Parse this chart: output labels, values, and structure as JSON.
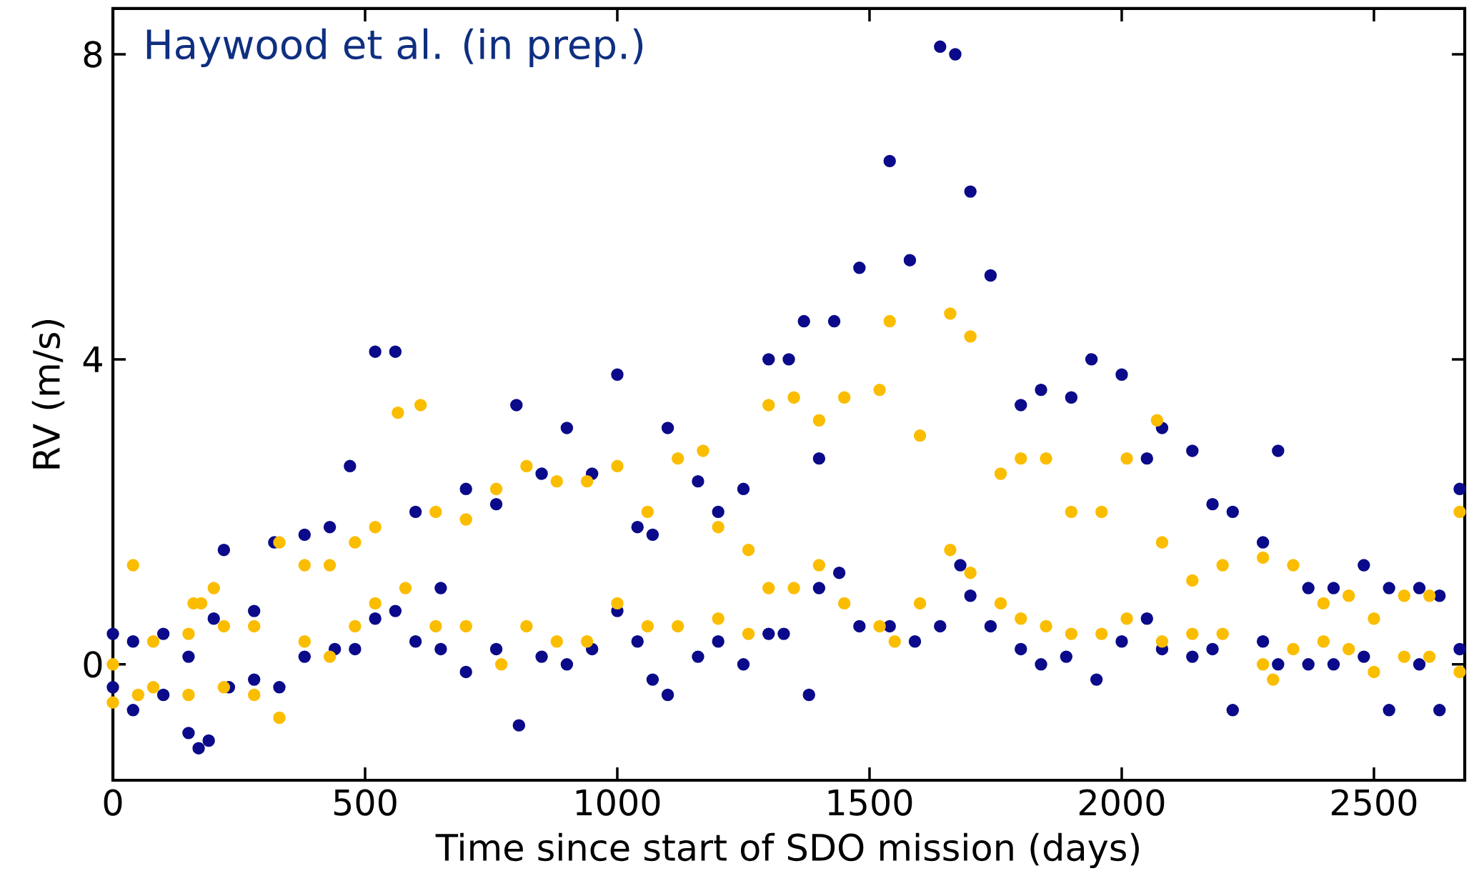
{
  "chart_data": {
    "type": "scatter",
    "xlabel": "Time since start of SDO mission (days)",
    "ylabel": "RV (m/s)",
    "annotations": [
      "Haywood et al. (in prep.)"
    ],
    "marker": "circle",
    "xlim": [
      0,
      2680
    ],
    "ylim": [
      -1.52,
      8.6
    ],
    "xticks": [
      0,
      500,
      1000,
      1500,
      2000,
      2500
    ],
    "yticks": [
      0,
      4,
      8
    ],
    "series": [
      {
        "color": "#0a0a8a",
        "x": [
          0,
          0,
          40,
          40,
          100,
          100,
          150,
          150,
          170,
          200,
          190,
          220,
          230,
          280,
          280,
          320,
          330,
          380,
          380,
          430,
          440,
          470,
          480,
          520,
          520,
          560,
          560,
          600,
          600,
          650,
          650,
          700,
          700,
          760,
          760,
          800,
          805,
          850,
          850,
          900,
          900,
          950,
          950,
          1000,
          1000,
          1040,
          1040,
          1070,
          1070,
          1100,
          1100,
          1160,
          1160,
          1200,
          1200,
          1250,
          1250,
          1300,
          1300,
          1340,
          1330,
          1370,
          1380,
          1400,
          1400,
          1430,
          1440,
          1480,
          1480,
          1540,
          1540,
          1580,
          1590,
          1640,
          1640,
          1670,
          1680,
          1700,
          1700,
          1740,
          1740,
          1800,
          1800,
          1840,
          1840,
          1900,
          1890,
          1940,
          1950,
          2000,
          2000,
          2050,
          2050,
          2080,
          2080,
          2140,
          2140,
          2180,
          2180,
          2220,
          2220,
          2280,
          2280,
          2310,
          2310,
          2370,
          2370,
          2420,
          2420,
          2480,
          2480,
          2530,
          2530,
          2590,
          2590,
          2630,
          2630,
          2670,
          2670
        ],
        "values": [
          0.4,
          -0.3,
          0.3,
          -0.6,
          0.4,
          -0.4,
          0.1,
          -0.9,
          -1.1,
          0.6,
          -1.0,
          1.5,
          -0.3,
          0.7,
          -0.2,
          1.6,
          -0.3,
          1.7,
          0.1,
          1.8,
          0.2,
          2.6,
          0.2,
          4.1,
          0.6,
          4.1,
          0.7,
          2.0,
          0.3,
          1.0,
          0.2,
          2.3,
          -0.1,
          2.1,
          0.2,
          3.4,
          -0.8,
          2.5,
          0.1,
          3.1,
          0.0,
          2.5,
          0.2,
          3.8,
          0.7,
          1.8,
          0.3,
          1.7,
          -0.2,
          3.1,
          -0.4,
          2.4,
          0.1,
          2.0,
          0.3,
          2.3,
          0.0,
          4.0,
          0.4,
          4.0,
          0.4,
          4.5,
          -0.4,
          2.7,
          1.0,
          4.5,
          1.2,
          5.2,
          0.5,
          6.6,
          0.5,
          5.3,
          0.3,
          8.1,
          0.5,
          8.0,
          1.3,
          6.2,
          0.9,
          5.1,
          0.5,
          3.4,
          0.2,
          3.6,
          0.0,
          3.5,
          0.1,
          4.0,
          -0.2,
          3.8,
          0.3,
          2.7,
          0.6,
          3.1,
          0.2,
          2.8,
          0.1,
          2.1,
          0.2,
          2.0,
          -0.6,
          1.6,
          0.3,
          2.8,
          0.0,
          1.0,
          0.0,
          1.0,
          0.0,
          1.3,
          0.1,
          1.0,
          -0.6,
          1.0,
          0.0,
          0.9,
          -0.6,
          2.3,
          0.2
        ]
      },
      {
        "color": "#fbbd00",
        "x": [
          0,
          0,
          40,
          50,
          80,
          80,
          150,
          150,
          160,
          175,
          200,
          220,
          220,
          280,
          280,
          330,
          330,
          380,
          380,
          430,
          430,
          480,
          480,
          520,
          520,
          565,
          580,
          610,
          640,
          640,
          700,
          700,
          760,
          770,
          820,
          820,
          880,
          880,
          940,
          940,
          1000,
          1000,
          1060,
          1060,
          1120,
          1120,
          1170,
          1200,
          1200,
          1260,
          1260,
          1300,
          1300,
          1350,
          1350,
          1400,
          1400,
          1450,
          1450,
          1520,
          1520,
          1540,
          1550,
          1600,
          1600,
          1660,
          1660,
          1700,
          1700,
          1760,
          1760,
          1800,
          1800,
          1850,
          1850,
          1900,
          1900,
          1960,
          1960,
          2010,
          2010,
          2070,
          2080,
          2080,
          2140,
          2140,
          2200,
          2200,
          2280,
          2280,
          2300,
          2340,
          2340,
          2400,
          2400,
          2450,
          2450,
          2500,
          2500,
          2560,
          2560,
          2610,
          2610,
          2670,
          2670
        ],
        "values": [
          0.0,
          -0.5,
          1.3,
          -0.4,
          0.3,
          -0.3,
          0.4,
          -0.4,
          0.8,
          0.8,
          1.0,
          0.5,
          -0.3,
          0.5,
          -0.4,
          -0.7,
          1.6,
          1.3,
          0.3,
          1.3,
          0.1,
          1.6,
          0.5,
          1.8,
          0.8,
          3.3,
          1.0,
          3.4,
          2.0,
          0.5,
          1.9,
          0.5,
          2.3,
          0.0,
          2.6,
          0.5,
          2.4,
          0.3,
          2.4,
          0.3,
          2.6,
          0.8,
          2.0,
          0.5,
          2.7,
          0.5,
          2.8,
          1.8,
          0.6,
          1.5,
          0.4,
          3.4,
          1.0,
          3.5,
          1.0,
          3.2,
          1.3,
          3.5,
          0.8,
          3.6,
          0.5,
          4.5,
          0.3,
          3.0,
          0.8,
          4.6,
          1.5,
          4.3,
          1.2,
          2.5,
          0.8,
          2.7,
          0.6,
          2.7,
          0.5,
          2.0,
          0.4,
          2.0,
          0.4,
          2.7,
          0.6,
          3.2,
          1.6,
          0.3,
          1.1,
          0.4,
          1.3,
          0.4,
          1.4,
          0.0,
          -0.2,
          1.3,
          0.2,
          0.8,
          0.3,
          0.9,
          0.2,
          0.6,
          -0.1,
          0.9,
          0.1,
          0.9,
          0.1,
          2.0,
          -0.1
        ]
      }
    ]
  }
}
